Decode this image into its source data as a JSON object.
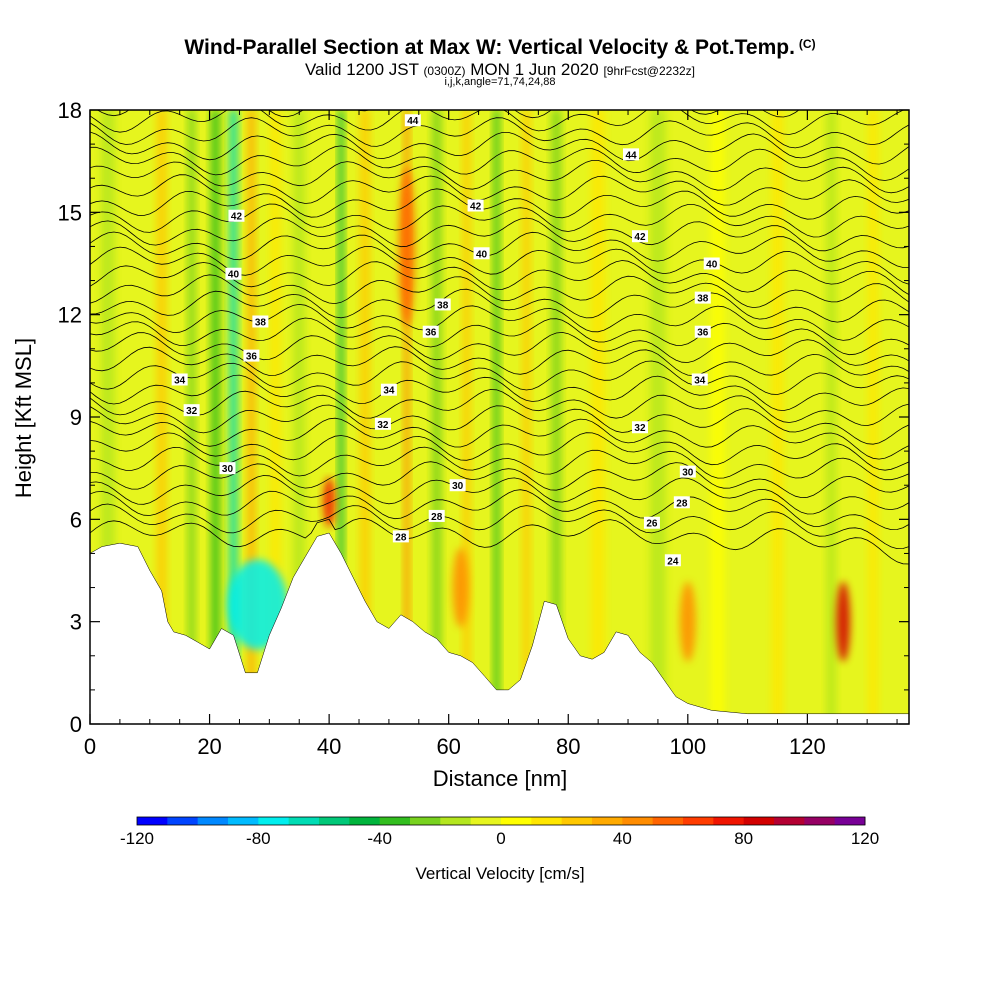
{
  "title": {
    "main": "Wind-Parallel Section at Max W: Vertical Velocity & Pot.Temp.",
    "copyright": "(C)",
    "valid_prefix": "Valid 1200 JST",
    "valid_utc": "(0300Z)",
    "valid_date": "MON 1 Jun 2020",
    "forecast": "[9hrFcst@2232z]",
    "section_info": "i,j,k,angle=71,74,24,88"
  },
  "chart_data": {
    "type": "heatmap",
    "xlabel": "Distance [nm]",
    "ylabel": "Height [Kft MSL]",
    "xlim": [
      0,
      137
    ],
    "ylim": [
      0,
      18
    ],
    "xticks": [
      0,
      20,
      40,
      60,
      80,
      100,
      120
    ],
    "yticks": [
      0,
      3,
      6,
      9,
      12,
      15,
      18
    ],
    "colorbar": {
      "label": "Vertical Velocity [cm/s]",
      "range": [
        -120,
        120
      ],
      "ticks": [
        -120,
        -80,
        -40,
        0,
        40,
        80,
        120
      ],
      "colors": [
        "#0000ff",
        "#0044ff",
        "#0088ff",
        "#00bbff",
        "#00eeee",
        "#00dcb4",
        "#00c878",
        "#00b43c",
        "#32be1e",
        "#78d21e",
        "#b4e61e",
        "#e6f51e",
        "#ffff00",
        "#ffe600",
        "#ffc800",
        "#ffaa00",
        "#ff8c00",
        "#ff6400",
        "#ff3c00",
        "#f01400",
        "#d20000",
        "#b40032",
        "#960064",
        "#780096"
      ]
    },
    "terrain": [
      [
        0,
        5.0
      ],
      [
        2,
        5.2
      ],
      [
        5,
        5.3
      ],
      [
        8,
        5.2
      ],
      [
        10,
        4.5
      ],
      [
        12,
        3.9
      ],
      [
        13,
        3.0
      ],
      [
        14,
        2.7
      ],
      [
        16,
        2.6
      ],
      [
        18,
        2.4
      ],
      [
        20,
        2.2
      ],
      [
        22,
        2.8
      ],
      [
        24,
        2.6
      ],
      [
        26,
        1.5
      ],
      [
        28,
        1.5
      ],
      [
        30,
        2.6
      ],
      [
        32,
        3.4
      ],
      [
        34,
        4.3
      ],
      [
        36,
        4.9
      ],
      [
        38,
        5.5
      ],
      [
        40,
        5.6
      ],
      [
        42,
        5.0
      ],
      [
        44,
        4.3
      ],
      [
        46,
        3.6
      ],
      [
        48,
        3.0
      ],
      [
        50,
        2.8
      ],
      [
        52,
        3.2
      ],
      [
        54,
        3.0
      ],
      [
        56,
        2.7
      ],
      [
        58,
        2.5
      ],
      [
        60,
        2.1
      ],
      [
        62,
        2.0
      ],
      [
        64,
        1.8
      ],
      [
        66,
        1.4
      ],
      [
        68,
        1.0
      ],
      [
        70,
        1.0
      ],
      [
        72,
        1.3
      ],
      [
        74,
        2.3
      ],
      [
        76,
        3.6
      ],
      [
        78,
        3.5
      ],
      [
        80,
        2.5
      ],
      [
        82,
        2.0
      ],
      [
        84,
        1.9
      ],
      [
        86,
        2.1
      ],
      [
        88,
        2.7
      ],
      [
        90,
        2.6
      ],
      [
        92,
        2.1
      ],
      [
        94,
        1.8
      ],
      [
        96,
        1.3
      ],
      [
        98,
        0.8
      ],
      [
        100,
        0.6
      ],
      [
        104,
        0.4
      ],
      [
        110,
        0.3
      ],
      [
        137,
        0.3
      ]
    ],
    "theta_labels": [
      {
        "text": "44",
        "x": 54.0,
        "y": 17.7
      },
      {
        "text": "44",
        "x": 90.5,
        "y": 16.7
      },
      {
        "text": "42",
        "x": 24.5,
        "y": 14.9
      },
      {
        "text": "42",
        "x": 64.5,
        "y": 15.2
      },
      {
        "text": "42",
        "x": 92.0,
        "y": 14.3
      },
      {
        "text": "40",
        "x": 24.0,
        "y": 13.2
      },
      {
        "text": "40",
        "x": 65.5,
        "y": 13.8
      },
      {
        "text": "40",
        "x": 104.0,
        "y": 13.5
      },
      {
        "text": "38",
        "x": 28.5,
        "y": 11.8
      },
      {
        "text": "38",
        "x": 59.0,
        "y": 12.3
      },
      {
        "text": "38",
        "x": 102.5,
        "y": 12.5
      },
      {
        "text": "36",
        "x": 27.0,
        "y": 10.8
      },
      {
        "text": "36",
        "x": 57.0,
        "y": 11.5
      },
      {
        "text": "36",
        "x": 102.5,
        "y": 11.5
      },
      {
        "text": "34",
        "x": 15.0,
        "y": 10.1
      },
      {
        "text": "34",
        "x": 50.0,
        "y": 9.8
      },
      {
        "text": "34",
        "x": 102.0,
        "y": 10.1
      },
      {
        "text": "32",
        "x": 17.0,
        "y": 9.2
      },
      {
        "text": "32",
        "x": 49.0,
        "y": 8.8
      },
      {
        "text": "32",
        "x": 92.0,
        "y": 8.7
      },
      {
        "text": "30",
        "x": 23.0,
        "y": 7.5
      },
      {
        "text": "30",
        "x": 61.5,
        "y": 7.0
      },
      {
        "text": "30",
        "x": 100.0,
        "y": 7.4
      },
      {
        "text": "28",
        "x": 58.0,
        "y": 6.1
      },
      {
        "text": "28",
        "x": 99.0,
        "y": 6.5
      },
      {
        "text": "28",
        "x": 52.0,
        "y": 5.5
      },
      {
        "text": "26",
        "x": 94.0,
        "y": 5.9
      },
      {
        "text": "24",
        "x": 97.5,
        "y": 4.8
      }
    ]
  }
}
